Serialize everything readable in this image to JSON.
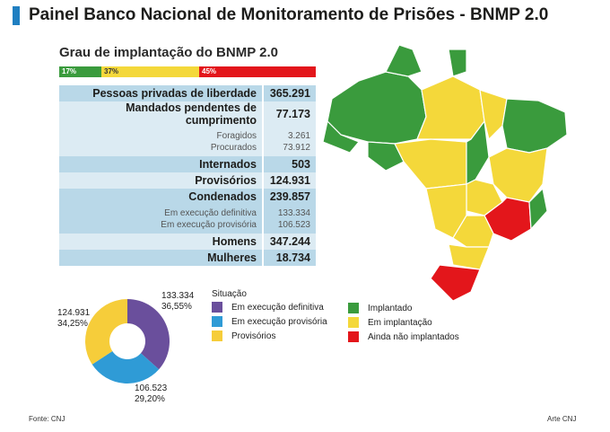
{
  "title": "Painel Banco Nacional de Monitoramento de Prisões - BNMP 2.0",
  "subtitle": "Grau de implantação do BNMP 2.0",
  "progress": [
    {
      "label": "17%",
      "value": 17,
      "color": "#3a9b3d"
    },
    {
      "label": "37%",
      "value": 37,
      "color": "#f4d83a"
    },
    {
      "label": "45%",
      "value": 45,
      "color": "#e3161b"
    }
  ],
  "table": {
    "rows": [
      {
        "label": "Pessoas privadas de liberdade",
        "value": "365.291"
      },
      {
        "label": "Mandados pendentes de cumprimento",
        "value": "77.173"
      },
      {
        "label": "Foragidos",
        "value": "3.261"
      },
      {
        "label": "Procurados",
        "value": "73.912"
      },
      {
        "label": "Internados",
        "value": "503"
      },
      {
        "label": "Provisórios",
        "value": "124.931"
      },
      {
        "label": "Condenados",
        "value": "239.857"
      },
      {
        "label": "Em execução definitiva",
        "value": "133.334"
      },
      {
        "label": "Em execução provisória",
        "value": "106.523"
      },
      {
        "label": "Homens",
        "value": "347.244"
      },
      {
        "label": "Mulheres",
        "value": "18.734"
      }
    ]
  },
  "chart_data": {
    "type": "pie",
    "donut": true,
    "slices": [
      {
        "name": "Em execução definitiva",
        "value": 133334,
        "label": "133.334",
        "pct": "36,55%",
        "color": "#6a4f9c"
      },
      {
        "name": "Em execução provisória",
        "value": 106523,
        "label": "106.523",
        "pct": "29,20%",
        "color": "#2f9bd6"
      },
      {
        "name": "Provisórios",
        "value": 124931,
        "label": "124.931",
        "pct": "34,25%",
        "color": "#f6cd3a"
      }
    ],
    "legend_title": "Situação"
  },
  "map_legend": [
    {
      "label": "Implantado",
      "color": "#3a9b3d"
    },
    {
      "label": "Em implantação",
      "color": "#f4d83a"
    },
    {
      "label": "Ainda não implantados",
      "color": "#e3161b"
    }
  ],
  "footer": {
    "source": "Fonte: CNJ",
    "credit": "Arte CNJ"
  }
}
